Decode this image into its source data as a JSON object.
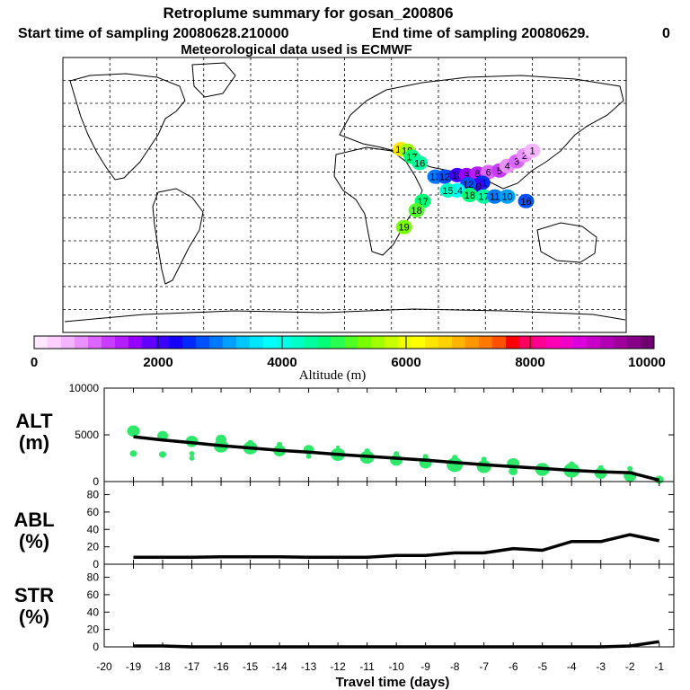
{
  "header": {
    "title": "Retroplume summary for gosan_200806",
    "start_sampling": "Start time of sampling 20080628.210000",
    "end_sampling": "End time of sampling 20080629.",
    "end_suffix": "0",
    "met_data": "Meteorological data used is ECMWF"
  },
  "colorbar": {
    "label": "Altitude (m)",
    "ticks": [
      "0",
      "2000",
      "4000",
      "6000",
      "8000",
      "10000"
    ],
    "colors": [
      "#ffe8ff",
      "#ffd0ff",
      "#f5b4ff",
      "#ea90ff",
      "#dc64ff",
      "#c83cff",
      "#b41efa",
      "#9600ff",
      "#6400ff",
      "#3c00ff",
      "#1400fa",
      "#0028ff",
      "#0050ff",
      "#0078ff",
      "#00a0ff",
      "#00c8ff",
      "#00e6ff",
      "#00ffff",
      "#00ffe6",
      "#00ffc8",
      "#00ffa0",
      "#00ff78",
      "#28ff50",
      "#50ff28",
      "#78ff00",
      "#a0ff00",
      "#c8ff00",
      "#f0ff00",
      "#ffff00",
      "#ffe600",
      "#ffd200",
      "#ffb400",
      "#ff9600",
      "#ff7800",
      "#ff5000",
      "#ff0000",
      "#ff0060",
      "#ff0090",
      "#ff00b4",
      "#f000c8",
      "#dc00dc",
      "#c800c8",
      "#b400b4",
      "#a0009b",
      "#870087",
      "#6e0070"
    ]
  },
  "chart_data": [
    {
      "name": "map",
      "type": "scatter",
      "xlim": [
        -180,
        180
      ],
      "ylim": [
        -90,
        90
      ],
      "grid_lon": [
        -150,
        -120,
        -90,
        -60,
        -30,
        0,
        30,
        60,
        90,
        120,
        150
      ],
      "grid_lat": [
        -75,
        -60,
        -45,
        -30,
        -15,
        0,
        15,
        30,
        45,
        60,
        75
      ],
      "points": [
        {
          "lon": 36,
          "lat": 30,
          "label": "19",
          "color": "#ffe600"
        },
        {
          "lon": 40,
          "lat": 29,
          "label": "18",
          "color": "#a0ff00"
        },
        {
          "lon": 43,
          "lat": 25,
          "label": "17",
          "color": "#00ff78"
        },
        {
          "lon": 48,
          "lat": 21,
          "label": "16",
          "color": "#00ffa0"
        },
        {
          "lon": 58,
          "lat": 12,
          "label": "13",
          "color": "#0078ff"
        },
        {
          "lon": 64,
          "lat": 12,
          "label": "12",
          "color": "#0050ff"
        },
        {
          "lon": 72,
          "lat": 13,
          "label": "10",
          "color": "#3c00ff"
        },
        {
          "lon": 78,
          "lat": 13,
          "label": "9",
          "color": "#9600ff"
        },
        {
          "lon": 85,
          "lat": 14,
          "label": "8",
          "color": "#b41efa"
        },
        {
          "lon": 92,
          "lat": 15,
          "label": "6",
          "color": "#dc64ff"
        },
        {
          "lon": 99,
          "lat": 16,
          "label": "5",
          "color": "#c83cff"
        },
        {
          "lon": 104,
          "lat": 19,
          "label": "4",
          "color": "#ea90ff"
        },
        {
          "lon": 110,
          "lat": 22,
          "label": "3",
          "color": "#dc64ff"
        },
        {
          "lon": 115,
          "lat": 26,
          "label": "2",
          "color": "#ea90ff"
        },
        {
          "lon": 120,
          "lat": 29,
          "label": "1",
          "color": "#f5b4ff"
        },
        {
          "lon": 88,
          "lat": 8,
          "label": "11",
          "color": "#0028ff"
        },
        {
          "lon": 84,
          "lat": 6,
          "label": "10",
          "color": "#3c00ff"
        },
        {
          "lon": 79,
          "lat": 7,
          "label": "12",
          "color": "#0050ff"
        },
        {
          "lon": 72,
          "lat": 3,
          "label": "14",
          "color": "#00ffff"
        },
        {
          "lon": 66,
          "lat": 3,
          "label": "15",
          "color": "#00ffc8"
        },
        {
          "lon": 80,
          "lat": 0,
          "label": "18",
          "color": "#00ff78"
        },
        {
          "lon": 89,
          "lat": -1,
          "label": "17",
          "color": "#00ffa0"
        },
        {
          "lon": 96,
          "lat": -1,
          "label": "11",
          "color": "#0078ff"
        },
        {
          "lon": 104,
          "lat": -1,
          "label": "10",
          "color": "#00a0ff"
        },
        {
          "lon": 116,
          "lat": -4,
          "label": "16",
          "color": "#0050ff"
        },
        {
          "lon": 50,
          "lat": -4,
          "label": "17",
          "color": "#00ff78"
        },
        {
          "lon": 46,
          "lat": -10,
          "label": "18",
          "color": "#50ff28"
        },
        {
          "lon": 38,
          "lat": -21,
          "label": "19",
          "color": "#78ff00"
        }
      ]
    },
    {
      "name": "alt",
      "type": "line",
      "ylabel": "ALT\n(m)",
      "ylim": [
        0,
        10000
      ],
      "yticks": [
        0,
        5000,
        10000
      ],
      "xlim": [
        -20,
        -0.5
      ],
      "xticks": [
        -20,
        -19,
        -18,
        -17,
        -16,
        -15,
        -14,
        -13,
        -12,
        -11,
        -10,
        -9,
        -8,
        -7,
        -6,
        -5,
        -4,
        -3,
        -2,
        -1
      ],
      "x": [
        -19,
        -18,
        -17,
        -16,
        -15,
        -14,
        -13,
        -12,
        -11,
        -10,
        -9,
        -8,
        -7,
        -6,
        -5,
        -4,
        -3,
        -2,
        -1
      ],
      "values": [
        4800,
        4450,
        4150,
        3850,
        3600,
        3350,
        3150,
        2900,
        2700,
        2500,
        2300,
        2050,
        1800,
        1600,
        1400,
        1200,
        1050,
        950,
        150
      ],
      "blobs": [
        {
          "x": -19,
          "y": 5400,
          "r": 7
        },
        {
          "x": -19,
          "y": 3000,
          "r": 4
        },
        {
          "x": -18,
          "y": 4900,
          "r": 6
        },
        {
          "x": -18,
          "y": 2900,
          "r": 4
        },
        {
          "x": -17,
          "y": 4300,
          "r": 7
        },
        {
          "x": -17,
          "y": 3000,
          "r": 3
        },
        {
          "x": -17,
          "y": 2500,
          "r": 3
        },
        {
          "x": -16,
          "y": 4500,
          "r": 6
        },
        {
          "x": -16,
          "y": 3800,
          "r": 8
        },
        {
          "x": -15,
          "y": 3600,
          "r": 8
        },
        {
          "x": -15,
          "y": 4200,
          "r": 3
        },
        {
          "x": -14,
          "y": 3300,
          "r": 7
        },
        {
          "x": -14,
          "y": 4000,
          "r": 3
        },
        {
          "x": -13,
          "y": 3400,
          "r": 6
        },
        {
          "x": -13,
          "y": 2700,
          "r": 3
        },
        {
          "x": -12,
          "y": 2900,
          "r": 8
        },
        {
          "x": -12,
          "y": 3700,
          "r": 2
        },
        {
          "x": -11,
          "y": 2600,
          "r": 8
        },
        {
          "x": -11,
          "y": 3300,
          "r": 3
        },
        {
          "x": -10,
          "y": 2300,
          "r": 7
        },
        {
          "x": -10,
          "y": 3000,
          "r": 3
        },
        {
          "x": -9,
          "y": 2000,
          "r": 7
        },
        {
          "x": -9,
          "y": 2700,
          "r": 3
        },
        {
          "x": -8,
          "y": 1800,
          "r": 9
        },
        {
          "x": -8,
          "y": 2600,
          "r": 3
        },
        {
          "x": -7,
          "y": 1600,
          "r": 8
        },
        {
          "x": -7,
          "y": 2400,
          "r": 3
        },
        {
          "x": -6,
          "y": 1900,
          "r": 7
        },
        {
          "x": -6,
          "y": 1100,
          "r": 5
        },
        {
          "x": -5,
          "y": 1300,
          "r": 8
        },
        {
          "x": -4,
          "y": 1200,
          "r": 9
        },
        {
          "x": -4,
          "y": 1900,
          "r": 3
        },
        {
          "x": -3,
          "y": 900,
          "r": 7
        },
        {
          "x": -3,
          "y": 1500,
          "r": 3
        },
        {
          "x": -2,
          "y": 600,
          "r": 7
        },
        {
          "x": -2,
          "y": 1400,
          "r": 3
        },
        {
          "x": -1,
          "y": 200,
          "r": 5
        }
      ]
    },
    {
      "name": "abl",
      "type": "line",
      "ylabel": "ABL\n(%)",
      "ylim": [
        0,
        95
      ],
      "yticks": [
        0,
        20,
        40,
        60,
        80
      ],
      "x": [
        -19,
        -18,
        -17,
        -16,
        -15,
        -14,
        -13,
        -12,
        -11,
        -10,
        -9,
        -8,
        -7,
        -6,
        -5,
        -4,
        -3,
        -2,
        -1
      ],
      "values": [
        8,
        8,
        8,
        8.5,
        8.5,
        8.5,
        8,
        8,
        8,
        10,
        10,
        13,
        13,
        18,
        16,
        26,
        26,
        34,
        27
      ]
    },
    {
      "name": "str",
      "type": "line",
      "ylabel": "STR\n(%)",
      "ylim": [
        0,
        95
      ],
      "yticks": [
        0,
        20,
        40,
        60,
        80
      ],
      "x": [
        -19,
        -18,
        -17,
        -16,
        -15,
        -14,
        -13,
        -12,
        -11,
        -10,
        -9,
        -8,
        -7,
        -6,
        -5,
        -4,
        -3,
        -2,
        -1
      ],
      "values": [
        1,
        1,
        0,
        0,
        0,
        0,
        0,
        0,
        0,
        0,
        0,
        0,
        0,
        0,
        0,
        0,
        0,
        1,
        6
      ],
      "xlabel": "Travel time (days)"
    }
  ],
  "bottom_axis": {
    "xlabel": "Travel time (days)",
    "ticks": [
      "-20",
      "-19",
      "-18",
      "-17",
      "-16",
      "-15",
      "-14",
      "-13",
      "-12",
      "-11",
      "-10",
      "-9",
      "-8",
      "-7",
      "-6",
      "-5",
      "-4",
      "-3",
      "-2",
      "-1"
    ]
  }
}
